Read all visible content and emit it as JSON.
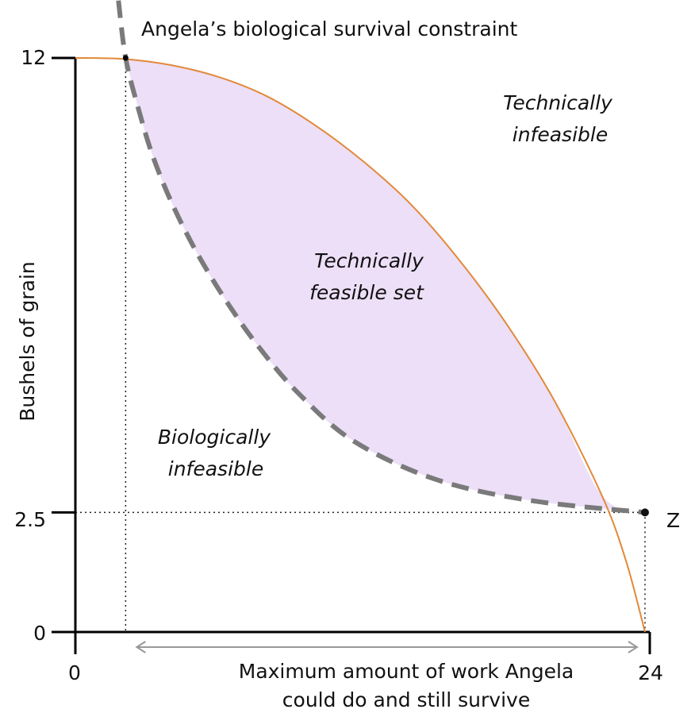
{
  "chart_data": {
    "type": "area",
    "title": "",
    "xlabel": "Maximum amount of work Angela could do and still survive",
    "ylabel": "Bushels of grain",
    "xlim": [
      0,
      24
    ],
    "ylim": [
      0,
      12
    ],
    "x_tick_labels": [
      "0",
      "24"
    ],
    "y_tick_labels": [
      "0",
      "2.5",
      "12"
    ],
    "series": [
      {
        "type": "line",
        "points": [
          [
            0,
            12
          ],
          [
            2,
            11.98
          ],
          [
            4,
            11.85
          ],
          [
            6,
            11.6
          ],
          [
            8,
            11.2
          ],
          [
            10,
            10.6
          ],
          [
            12,
            9.85
          ],
          [
            14,
            8.95
          ],
          [
            16,
            7.8
          ],
          [
            18,
            6.45
          ],
          [
            20,
            4.85
          ],
          [
            22,
            2.85
          ],
          [
            23,
            1.5
          ],
          [
            23.8,
            0
          ]
        ]
      },
      {
        "type": "dashed-line",
        "points": [
          [
            1.8,
            13.2
          ],
          [
            2.1,
            12
          ],
          [
            2.6,
            11
          ],
          [
            3.2,
            10
          ],
          [
            4,
            9
          ],
          [
            5,
            8
          ],
          [
            6.2,
            7
          ],
          [
            7.6,
            6
          ],
          [
            9.3,
            5
          ],
          [
            11.6,
            4
          ],
          [
            15,
            3.2
          ],
          [
            19,
            2.75
          ],
          [
            23.8,
            2.5
          ]
        ]
      }
    ],
    "annotations": {
      "survival_label": "Angela’s biological survival constraint",
      "tech_infeasible_line1": "Technically",
      "tech_infeasible_line2": "infeasible",
      "feasible_line1": "Technically",
      "feasible_line2": "feasible set",
      "bio_infeasible_line1": "Biologically",
      "bio_infeasible_line2": "infeasible",
      "point_label": "Z"
    },
    "point_z": [
      23.8,
      2.5
    ],
    "guides": {
      "x_left": 2.1,
      "y_survive": 2.5
    },
    "colors": {
      "frontier": "#e2893a",
      "survival": "#7a7a7a",
      "feasible_fill": "#ecdff7",
      "range_arrow": "#999999"
    }
  }
}
